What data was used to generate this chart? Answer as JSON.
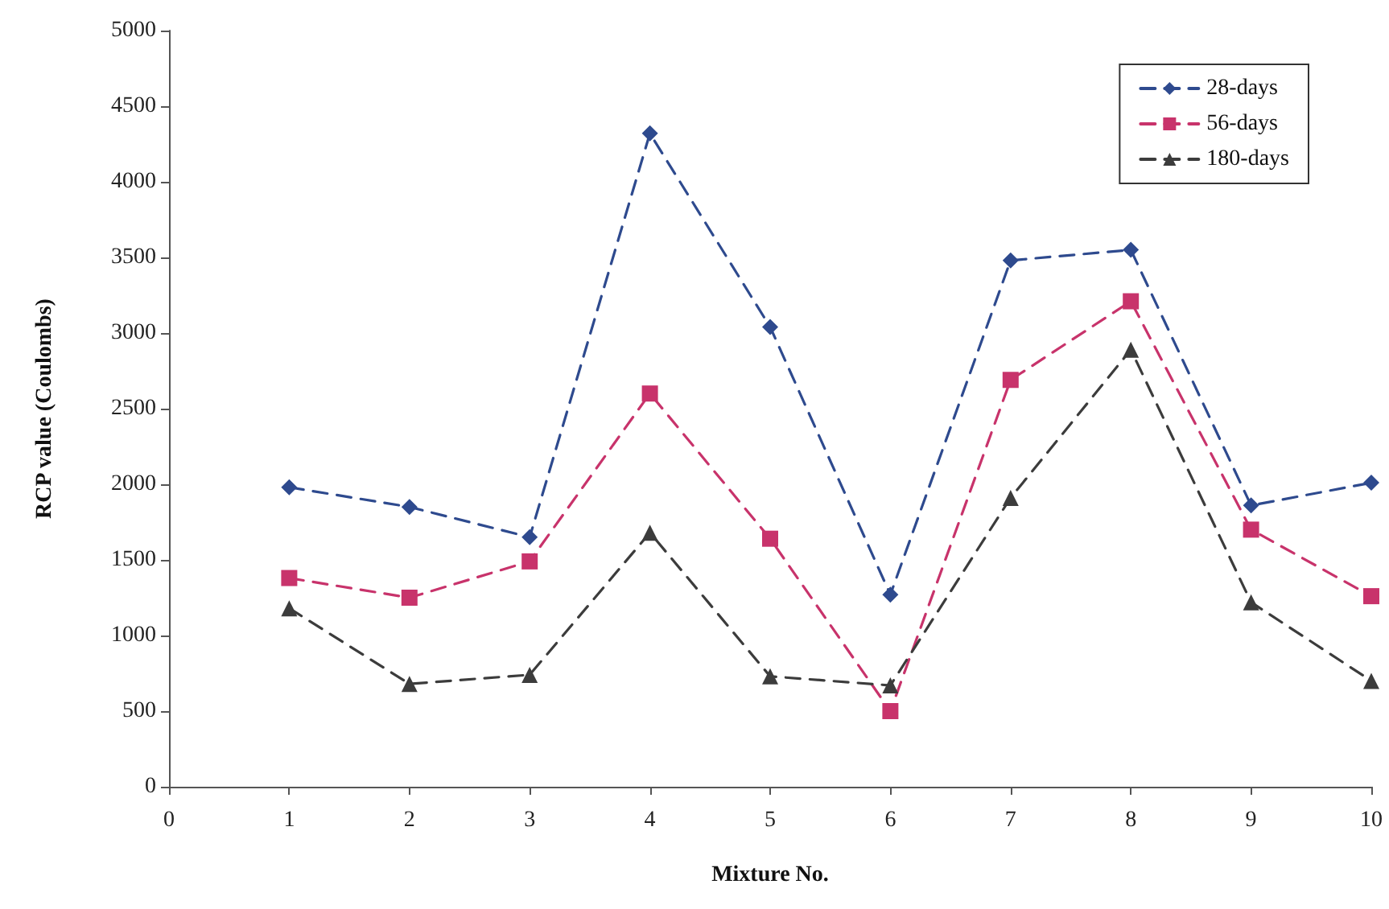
{
  "chart_data": {
    "type": "line",
    "xlabel": "Mixture No.",
    "ylabel": "RCP value (Coulombs)",
    "x": [
      1,
      2,
      3,
      4,
      5,
      6,
      7,
      8,
      9,
      10
    ],
    "series": [
      {
        "name": "28-days",
        "color": "#2e4a8e",
        "marker": "diamond",
        "values": [
          1980,
          1850,
          1650,
          4320,
          3040,
          1270,
          3480,
          3550,
          1860,
          2010
        ]
      },
      {
        "name": "56-days",
        "color": "#c8336b",
        "marker": "square",
        "values": [
          1380,
          1250,
          1490,
          2600,
          1640,
          500,
          2690,
          3210,
          1700,
          1260
        ]
      },
      {
        "name": "180-days",
        "color": "#3c3c3c",
        "marker": "triangle",
        "values": [
          1180,
          680,
          740,
          1680,
          730,
          670,
          1910,
          2890,
          1220,
          700
        ]
      }
    ],
    "xlim": [
      0,
      10
    ],
    "xticks": [
      0,
      1,
      2,
      3,
      4,
      5,
      6,
      7,
      8,
      9,
      10
    ],
    "ylim": [
      0,
      5000
    ],
    "yticks": [
      0,
      500,
      1000,
      1500,
      2000,
      2500,
      3000,
      3500,
      4000,
      4500,
      5000
    ],
    "grid": false,
    "legend": "top right",
    "line_style": "dashed"
  }
}
